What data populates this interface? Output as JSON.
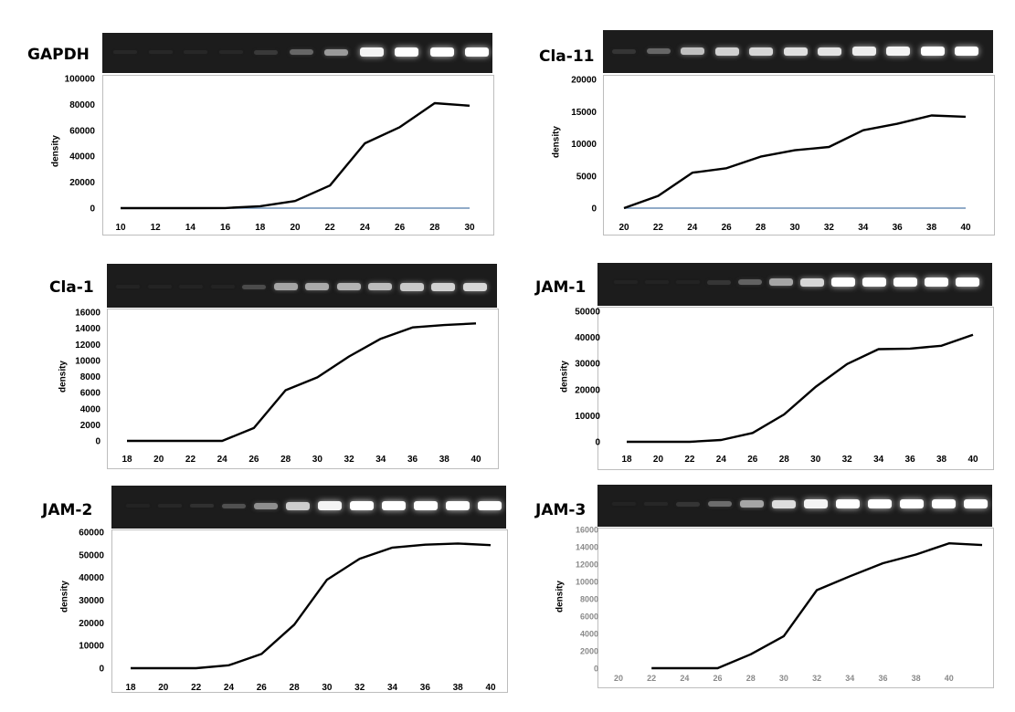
{
  "chart_data": [
    {
      "type": "line",
      "title": "GAPDH",
      "ylabel": "density",
      "x": [
        10,
        12,
        14,
        16,
        18,
        20,
        22,
        24,
        26,
        28,
        30
      ],
      "x_ticks": [
        "10",
        "12",
        "14",
        "16",
        "18",
        "20",
        "22",
        "24",
        "26",
        "28",
        "30"
      ],
      "y_ticks": [
        "0",
        "20000",
        "40000",
        "60000",
        "80000",
        "100000"
      ],
      "xlim": [
        10,
        30
      ],
      "ylim": [
        0,
        100000
      ],
      "series": [
        {
          "values": [
            0,
            0,
            0,
            100,
            1500,
            5500,
            17500,
            50000,
            62500,
            81000,
            79000
          ],
          "color": "#000000"
        },
        {
          "values": [
            0,
            0,
            0,
            0,
            0,
            0,
            0,
            0,
            0,
            0,
            0
          ],
          "color": "#6b8fb5"
        }
      ]
    },
    {
      "type": "line",
      "title": "Cla-11",
      "ylabel": "density",
      "x": [
        20,
        22,
        24,
        26,
        28,
        30,
        32,
        34,
        36,
        38,
        40
      ],
      "x_ticks": [
        "20",
        "22",
        "24",
        "26",
        "28",
        "30",
        "32",
        "34",
        "36",
        "38",
        "40"
      ],
      "y_ticks": [
        "0",
        "5000",
        "10000",
        "15000",
        "20000"
      ],
      "xlim": [
        20,
        40
      ],
      "ylim": [
        0,
        20000
      ],
      "series": [
        {
          "values": [
            0,
            1900,
            5500,
            6200,
            8000,
            9000,
            9500,
            12100,
            13100,
            14400,
            14200
          ],
          "color": "#000000"
        },
        {
          "values": [
            0,
            0,
            0,
            0,
            0,
            0,
            0,
            0,
            0,
            0,
            0
          ],
          "color": "#6b8fb5"
        }
      ]
    },
    {
      "type": "line",
      "title": "Cla-1",
      "ylabel": "density",
      "x": [
        18,
        20,
        22,
        24,
        26,
        28,
        30,
        32,
        34,
        36,
        38,
        40
      ],
      "x_ticks": [
        "18",
        "20",
        "22",
        "24",
        "26",
        "28",
        "30",
        "32",
        "34",
        "36",
        "38",
        "40"
      ],
      "y_ticks": [
        "0",
        "2000",
        "4000",
        "6000",
        "8000",
        "10000",
        "12000",
        "14000",
        "16000"
      ],
      "xlim": [
        18,
        40
      ],
      "ylim": [
        0,
        16000
      ],
      "series": [
        {
          "values": [
            0,
            0,
            0,
            0,
            1600,
            6300,
            7900,
            10500,
            12700,
            14100,
            14400,
            14600
          ],
          "color": "#000000"
        }
      ]
    },
    {
      "type": "line",
      "title": "JAM-1",
      "ylabel": "density",
      "x": [
        18,
        20,
        22,
        24,
        26,
        28,
        30,
        32,
        34,
        36,
        38,
        40
      ],
      "x_ticks": [
        "18",
        "20",
        "22",
        "24",
        "26",
        "28",
        "30",
        "32",
        "34",
        "36",
        "38",
        "40"
      ],
      "y_ticks": [
        "0",
        "10000",
        "20000",
        "30000",
        "40000",
        "50000"
      ],
      "xlim": [
        18,
        40
      ],
      "ylim": [
        0,
        50000
      ],
      "series": [
        {
          "values": [
            0,
            0,
            0,
            700,
            3400,
            10500,
            21000,
            29800,
            35500,
            35700,
            36800,
            41000
          ],
          "color": "#000000"
        }
      ]
    },
    {
      "type": "line",
      "title": "JAM-2",
      "ylabel": "density",
      "x": [
        18,
        20,
        22,
        24,
        26,
        28,
        30,
        32,
        34,
        36,
        38,
        40
      ],
      "x_ticks": [
        "18",
        "20",
        "22",
        "24",
        "26",
        "28",
        "30",
        "32",
        "34",
        "36",
        "38",
        "40"
      ],
      "y_ticks": [
        "0",
        "10000",
        "20000",
        "30000",
        "40000",
        "50000",
        "60000"
      ],
      "xlim": [
        18,
        40
      ],
      "ylim": [
        0,
        60000
      ],
      "series": [
        {
          "values": [
            0,
            0,
            0,
            1300,
            6300,
            19200,
            39000,
            48300,
            53200,
            54500,
            55000,
            54300
          ],
          "color": "#000000"
        }
      ]
    },
    {
      "type": "line",
      "title": "JAM-3",
      "ylabel": "density",
      "x": [
        22,
        24,
        26,
        28,
        30,
        32,
        34,
        36,
        38,
        40,
        42
      ],
      "x_ticks": [
        "20",
        "22",
        "24",
        "26",
        "28",
        "30",
        "32",
        "34",
        "36",
        "38",
        "40"
      ],
      "y_ticks": [
        "0",
        "2000",
        "4000",
        "6000",
        "8000",
        "10000",
        "12000",
        "14000",
        "16000"
      ],
      "xlim": [
        20,
        42
      ],
      "ylim": [
        0,
        16000
      ],
      "series": [
        {
          "values": [
            0,
            0,
            0,
            1600,
            3700,
            9000,
            10600,
            12100,
            13100,
            14400,
            14200
          ],
          "color": "#000000"
        }
      ]
    }
  ]
}
